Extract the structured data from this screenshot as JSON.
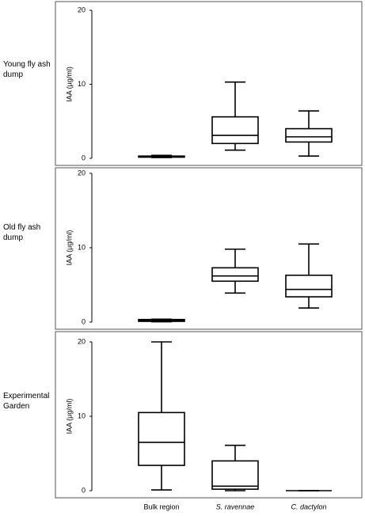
{
  "chart_data": [
    {
      "type": "box",
      "row_label": "Young fly ash dump",
      "ylabel": "IAA (µg/ml)",
      "categories": [
        null,
        null,
        null
      ],
      "boxes": [
        {
          "min": 0.1,
          "q1": 0.15,
          "median": 0.2,
          "q3": 0.3,
          "max": 0.4
        },
        {
          "min": 1.1,
          "q1": 2.0,
          "median": 3.1,
          "q3": 5.6,
          "max": 10.3
        },
        {
          "min": 0.3,
          "q1": 2.2,
          "median": 2.9,
          "q3": 4.0,
          "max": 6.4
        }
      ],
      "ylim": [
        0,
        20
      ],
      "yticks": [
        0,
        10,
        20
      ],
      "color": "#000000"
    },
    {
      "type": "box",
      "row_label": "Old fly ash dump",
      "ylabel": "IAA (µg/ml)",
      "categories": [
        null,
        null,
        null
      ],
      "boxes": [
        {
          "min": 0.05,
          "q1": 0.1,
          "median": 0.2,
          "q3": 0.35,
          "max": 0.4
        },
        {
          "min": 3.9,
          "q1": 5.5,
          "median": 6.2,
          "q3": 7.3,
          "max": 9.8
        },
        {
          "min": 1.9,
          "q1": 3.4,
          "median": 4.4,
          "q3": 6.3,
          "max": 10.5
        }
      ],
      "ylim": [
        0,
        20
      ],
      "yticks": [
        0,
        10,
        20
      ],
      "color": "#000000"
    },
    {
      "type": "box",
      "row_label": "Experimental Garden",
      "ylabel": "IAA (µg/ml)",
      "categories": [
        "Bulk region",
        "S. ravennae",
        "C. dactylon"
      ],
      "boxes": [
        {
          "min": 0.1,
          "q1": 3.4,
          "median": 6.5,
          "q3": 10.5,
          "max": 20
        },
        {
          "min": 0,
          "q1": 0.2,
          "median": 0.6,
          "q3": 4.0,
          "max": 6.1
        },
        {
          "min": 0,
          "q1": 0,
          "median": 0,
          "q3": 0,
          "max": 0
        }
      ],
      "ylim": [
        0,
        20
      ],
      "yticks": [
        0,
        10,
        20
      ],
      "color": "#000000"
    }
  ]
}
